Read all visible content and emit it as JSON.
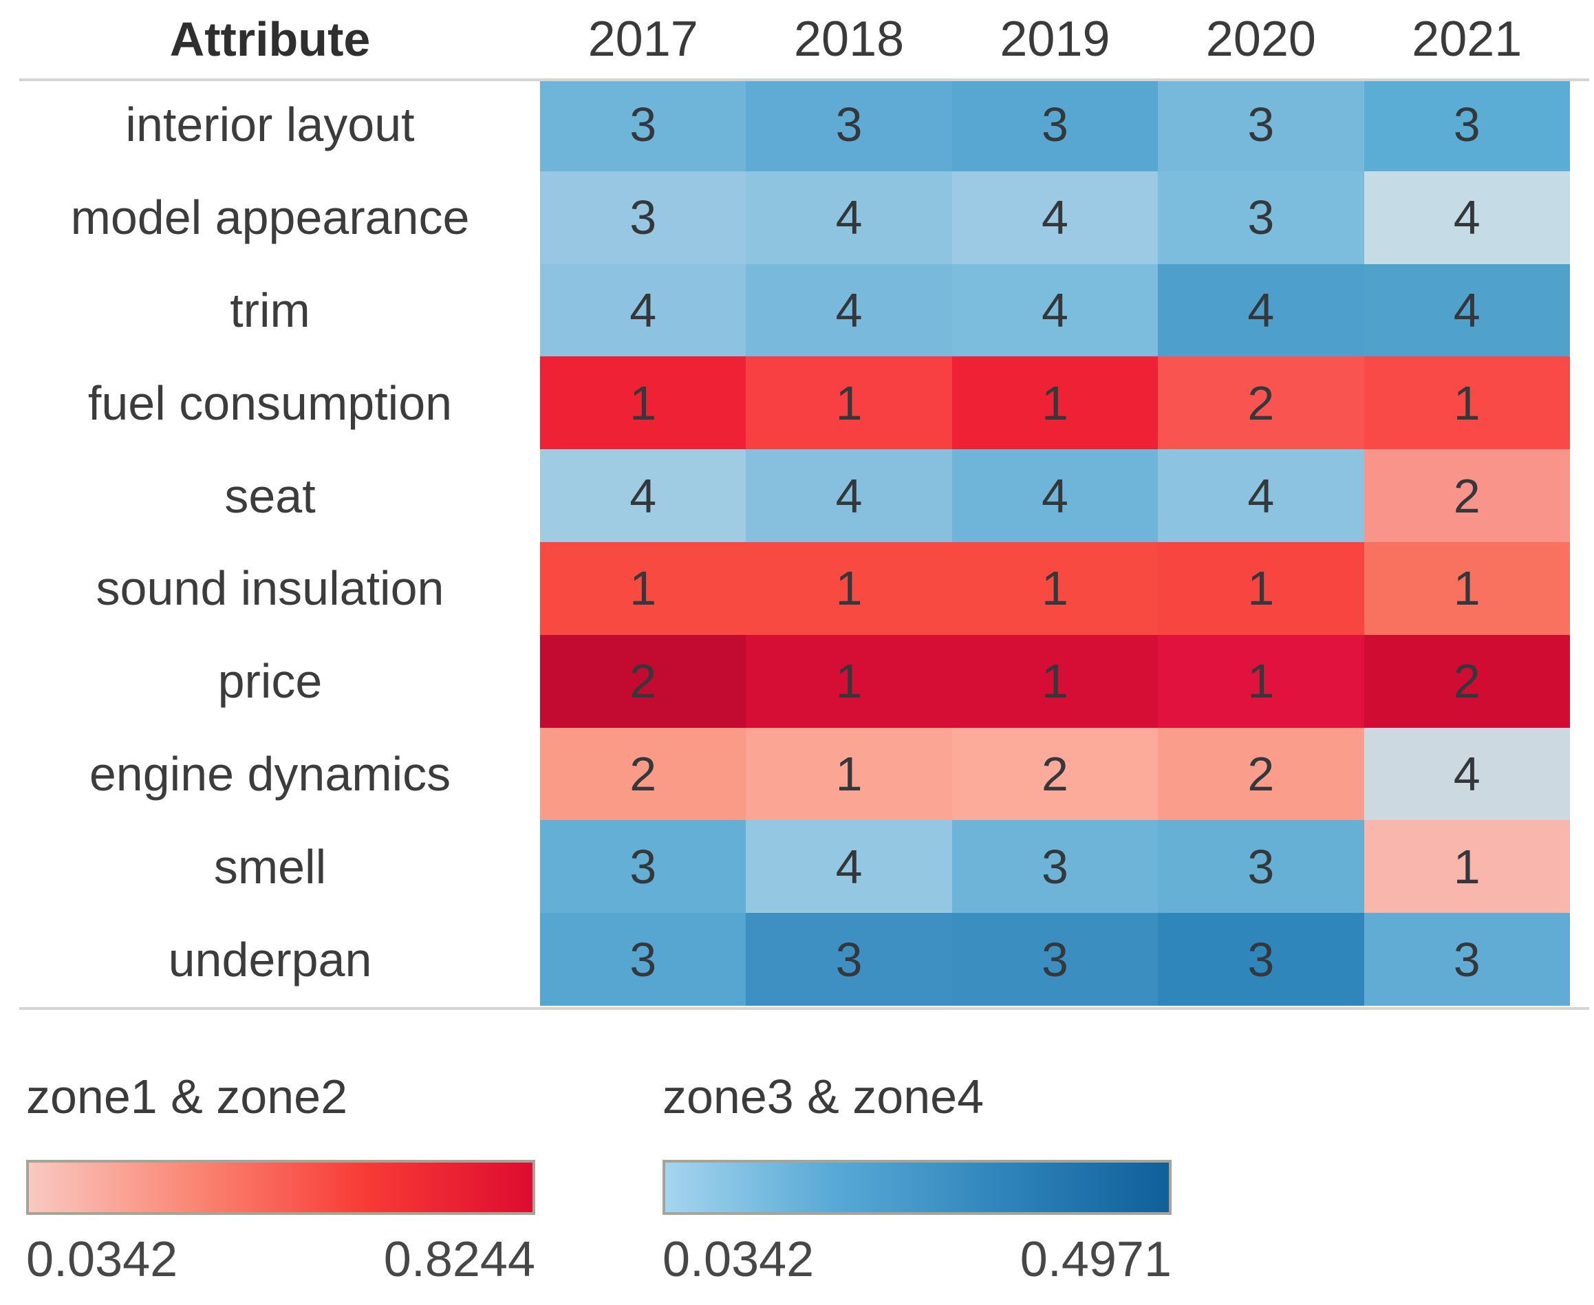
{
  "chart_data": {
    "type": "heatmap",
    "corner_label": "Attribute",
    "columns": [
      "2017",
      "2018",
      "2019",
      "2020",
      "2021"
    ],
    "rows_data": [
      {
        "label": "interior layout",
        "values": [
          3,
          3,
          3,
          3,
          3
        ],
        "colors": [
          "#6fb4d9",
          "#5fabd5",
          "#58a7d3",
          "#77b9db",
          "#5badd6"
        ]
      },
      {
        "label": "model appearance",
        "values": [
          3,
          4,
          4,
          3,
          4
        ],
        "colors": [
          "#97c7e2",
          "#8fc4e0",
          "#9cc9e3",
          "#7cbcdd",
          "#c5dbe6"
        ]
      },
      {
        "label": "trim",
        "values": [
          4,
          4,
          4,
          4,
          4
        ],
        "colors": [
          "#8dc3e0",
          "#79badc",
          "#7cbcdd",
          "#4f9fcc",
          "#51a1cd"
        ]
      },
      {
        "label": "fuel consumption",
        "values": [
          1,
          1,
          1,
          2,
          1
        ],
        "colors": [
          "#ee2135",
          "#f83f41",
          "#ee2135",
          "#fa5450",
          "#f94a47"
        ]
      },
      {
        "label": "seat",
        "values": [
          4,
          4,
          4,
          4,
          2
        ],
        "colors": [
          "#9fcbe3",
          "#86c0de",
          "#6fb5d9",
          "#8cc3e0",
          "#f8948a"
        ]
      },
      {
        "label": "sound insulation",
        "values": [
          1,
          1,
          1,
          1,
          1
        ],
        "colors": [
          "#f94a41",
          "#f94a41",
          "#f94a41",
          "#f8453f",
          "#f97260"
        ]
      },
      {
        "label": "price",
        "values": [
          2,
          1,
          1,
          1,
          2
        ],
        "colors": [
          "#c30a31",
          "#d60d34",
          "#d60d34",
          "#e2123e",
          "#d00c33"
        ]
      },
      {
        "label": "engine dynamics",
        "values": [
          2,
          1,
          2,
          2,
          4
        ],
        "colors": [
          "#fa9b88",
          "#fba695",
          "#fcab9b",
          "#fa9d8b",
          "#ccd9e0"
        ]
      },
      {
        "label": "smell",
        "values": [
          3,
          4,
          3,
          3,
          1
        ],
        "colors": [
          "#64afd6",
          "#93c7e2",
          "#6eb4d9",
          "#66b0d6",
          "#f9b6ac"
        ]
      },
      {
        "label": "underpan",
        "values": [
          3,
          3,
          3,
          3,
          3
        ],
        "colors": [
          "#57a6d2",
          "#3d90c1",
          "#3a8ec0",
          "#2e86ba",
          "#60acd5"
        ]
      }
    ],
    "colorbars": [
      {
        "title": "zone1 & zone2",
        "min": 0.0342,
        "max": 0.8244,
        "palette": "red"
      },
      {
        "title": "zone3 & zone4",
        "min": 0.0342,
        "max": 0.4971,
        "palette": "blue"
      }
    ]
  },
  "legends": [
    {
      "title": "zone1 & zone2",
      "min_label": "0.0342",
      "max_label": "0.8244",
      "gradient": [
        "#f9c9c1",
        "#fa8573",
        "#f83b36",
        "#dd0c30"
      ]
    },
    {
      "title": "zone3 & zone4",
      "min_label": "0.0342",
      "max_label": "0.4971",
      "gradient": [
        "#a5d5ee",
        "#58a9d6",
        "#2f85bb",
        "#0f5f9a"
      ]
    }
  ]
}
